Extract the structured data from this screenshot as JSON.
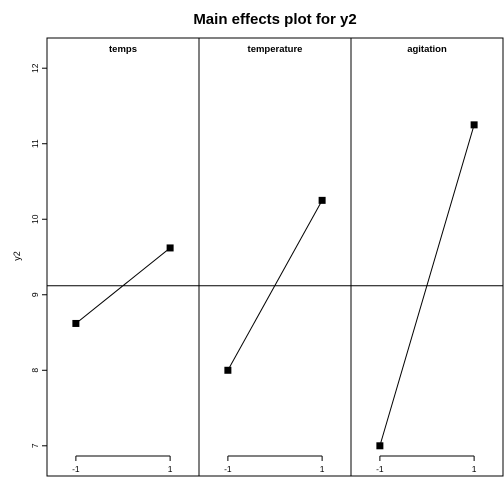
{
  "chart_data": {
    "type": "line",
    "title": "Main effects plot for y2",
    "ylabel": "y2",
    "ylim": [
      6.6,
      12.4
    ],
    "yticks": [
      7,
      8,
      9,
      10,
      11,
      12
    ],
    "grand_mean": 9.12,
    "x_levels": [
      "-1",
      "1"
    ],
    "panels": [
      {
        "label": "temps",
        "values": [
          8.62,
          9.62
        ]
      },
      {
        "label": "temperature",
        "values": [
          8.0,
          10.25
        ]
      },
      {
        "label": "agitation",
        "values": [
          7.0,
          11.25
        ]
      }
    ]
  }
}
